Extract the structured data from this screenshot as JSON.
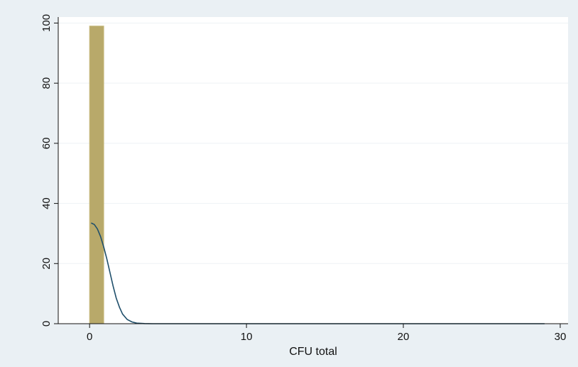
{
  "chart_data": {
    "type": "bar",
    "title": "",
    "xlabel": "CFU total",
    "ylabel": "",
    "xlim": [
      -2,
      30.5
    ],
    "ylim": [
      0,
      102
    ],
    "x_ticks": [
      "0",
      "10",
      "20",
      "30"
    ],
    "y_ticks": [
      "0",
      "20",
      "40",
      "60",
      "80",
      "100"
    ],
    "grid": true,
    "bins": [
      {
        "x_start": 0,
        "x_end": 0.9,
        "value": 99
      }
    ],
    "density_curve": {
      "x": [
        0.1,
        0.3,
        0.5,
        0.7,
        0.9,
        1.1,
        1.3,
        1.5,
        1.7,
        1.9,
        2.1,
        2.4,
        2.7,
        3.0,
        3.5,
        4,
        6,
        10,
        15,
        20,
        25,
        29
      ],
      "y": [
        33.5,
        33,
        31.5,
        29,
        25.5,
        21.5,
        17,
        12.5,
        8.5,
        5.5,
        3.2,
        1.4,
        0.6,
        0.2,
        0.05,
        0,
        0,
        0,
        0,
        0,
        0,
        0
      ]
    },
    "colors": {
      "bar": "#b8a96a",
      "bar_outline": "#c5b77a",
      "curve": "#1f4f6b",
      "plot_bg": "#ffffff",
      "outer_bg": "#eaf0f4",
      "grid": "#eef2f5"
    }
  }
}
